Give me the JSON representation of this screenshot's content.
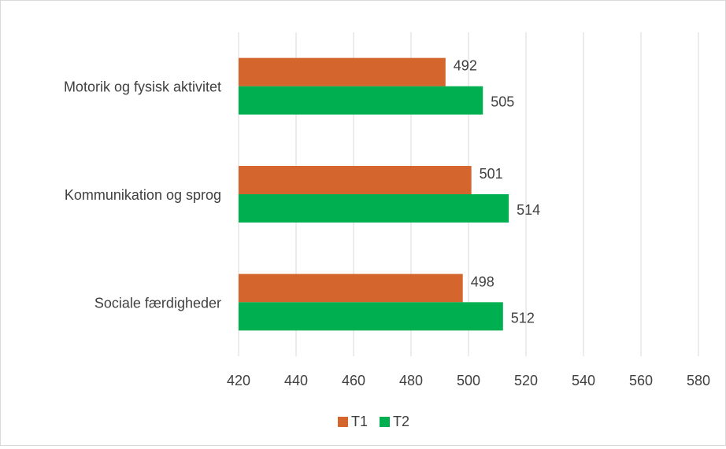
{
  "chart_data": {
    "type": "bar",
    "orientation": "horizontal",
    "categories": [
      "Motorik og fysisk aktivitet",
      "Kommunikation og sprog",
      "Sociale færdigheder"
    ],
    "series": [
      {
        "name": "T1",
        "values": [
          492,
          501,
          498
        ],
        "color": "#d4652d"
      },
      {
        "name": "T2",
        "values": [
          505,
          514,
          512
        ],
        "color": "#00b050"
      }
    ],
    "xlim": [
      420,
      590
    ],
    "xticks": [
      420,
      440,
      460,
      480,
      500,
      520,
      540,
      560,
      580
    ],
    "grid": "vertical",
    "legend": "bottom"
  }
}
